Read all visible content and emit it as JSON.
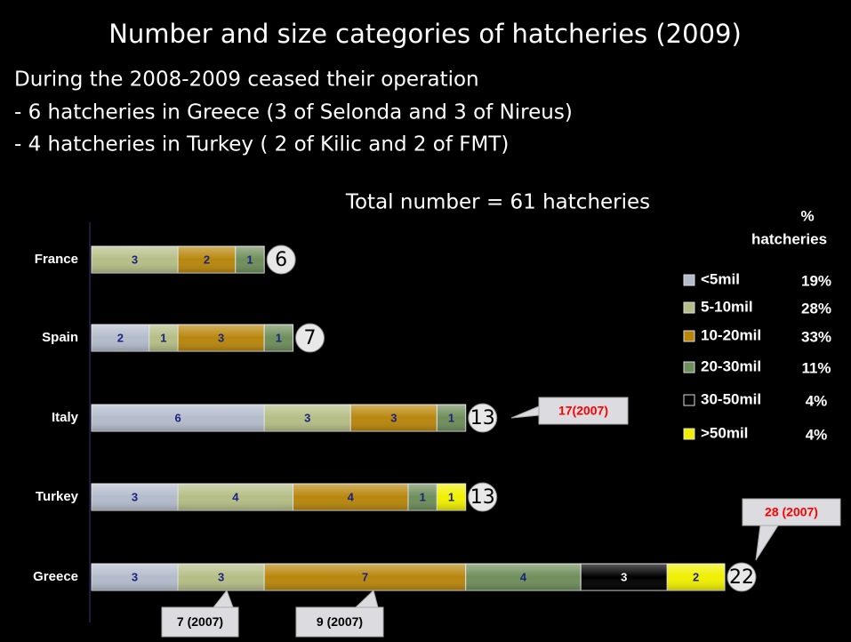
{
  "chart_data": {
    "type": "stacked-bar-horizontal",
    "title": "Number and size categories of hatcheries (2009)",
    "text_lines": [
      "During the 2008-2009 ceased their operation",
      "- 6 hatcheries in Greece (3 of Selonda and 3 of Nireus)",
      "- 4 hatcheries in Turkey ( 2 of Kilic and 2 of FMT)"
    ],
    "subtitle": "Total number = 61 hatcheries",
    "categories": [
      "France",
      "Spain",
      "Italy",
      "Turkey",
      "Greece"
    ],
    "series": [
      {
        "name": "<5mil",
        "color": "#b4bccc",
        "values": [
          null,
          2,
          6,
          3,
          3
        ],
        "share": 19,
        "share_label": "19%"
      },
      {
        "name": "5-10mil",
        "color": "#b5be86",
        "values": [
          3,
          1,
          3,
          4,
          3
        ],
        "share": 28,
        "share_label": "28%"
      },
      {
        "name": "10-20mil",
        "color": "#b8860b",
        "values": [
          2,
          3,
          3,
          4,
          7
        ],
        "share": 33,
        "share_label": "33%"
      },
      {
        "name": "20-30mil",
        "color": "#6e8e5a",
        "values": [
          1,
          1,
          1,
          1,
          4
        ],
        "share": 11,
        "share_label": "11%"
      },
      {
        "name": "30-50mil",
        "color": "#000000",
        "values": [
          null,
          null,
          null,
          null,
          3
        ],
        "share": 4,
        "share_label": "4%"
      },
      {
        "name": ">50mil",
        "color": "#f0f000",
        "values": [
          null,
          null,
          null,
          1,
          2
        ],
        "share": 4,
        "share_label": "4%"
      }
    ],
    "totals": [
      6,
      7,
      13,
      13,
      22
    ],
    "xlim": [
      0,
      22
    ],
    "legend_title": [
      "%",
      "hatcheries"
    ],
    "annotations": [
      {
        "text": "17(2007)",
        "color": "#ff0000"
      },
      {
        "text": "28 (2007)",
        "color": "#ff0000"
      },
      {
        "text": "7 (2007)",
        "color": "#000000"
      },
      {
        "text": "9 (2007)",
        "color": "#000000"
      }
    ]
  }
}
